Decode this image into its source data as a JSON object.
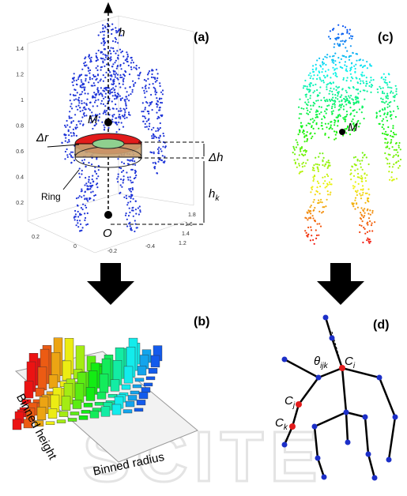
{
  "panels": [
    {
      "label": "(a)",
      "h": "h",
      "m": "M",
      "dr": "Δr",
      "dh": "Δh",
      "hk": {
        "label": "h",
        "sub": "k"
      },
      "ring": "Ring",
      "o": "O",
      "left_ticks": [
        "1.4",
        "1.2",
        "1",
        "0.8",
        "0.6",
        "0.4",
        "0.2"
      ],
      "bottom_ticks": [
        "0.2",
        "0",
        "-0.2",
        "-0.4"
      ],
      "right_ticks": [
        "1.8",
        "1.6",
        "1.4",
        "1.2"
      ]
    },
    {
      "label": "(b)",
      "y_title": "Binned height",
      "x_title": "Binned radius"
    },
    {
      "label": "(c)",
      "m": "M"
    },
    {
      "label": "(d)",
      "ci": {
        "label": "C",
        "sub": "i"
      },
      "cj": {
        "label": "C",
        "sub": "j"
      },
      "ck": {
        "label": "C",
        "sub": "k"
      },
      "theta": {
        "label": "θ",
        "sub": "ijk"
      }
    }
  ],
  "watermark": "SCITE"
}
